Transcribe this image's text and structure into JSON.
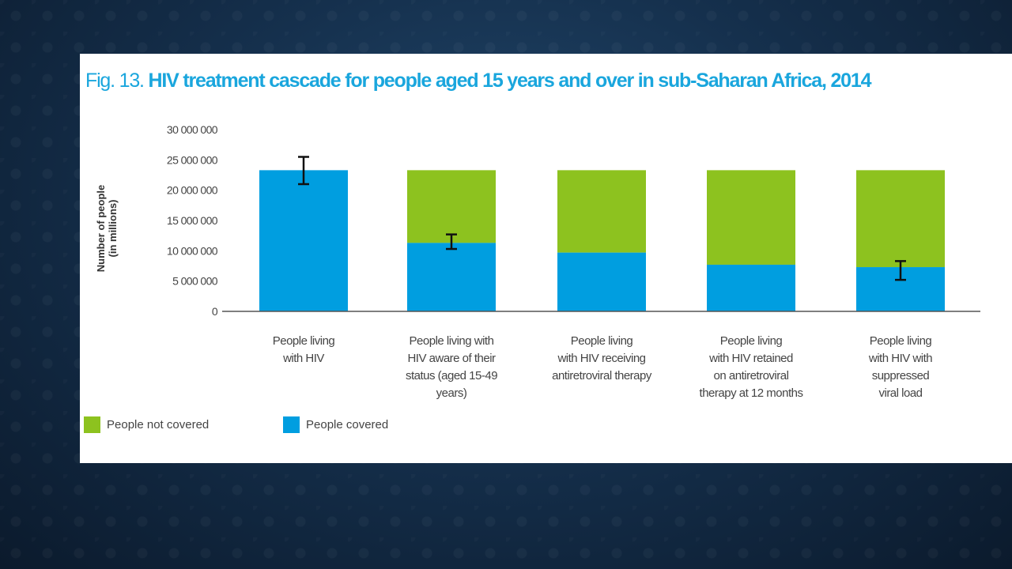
{
  "figure": {
    "number": "Fig. 13.",
    "title": "HIV treatment cascade for people aged 15 years and over in sub-Saharan Africa, 2014"
  },
  "chart_data": {
    "type": "bar",
    "stacked": true,
    "ylabel_lines": [
      "Number of people",
      "(in millions)"
    ],
    "ylim": [
      0,
      30000000
    ],
    "yticks": [
      "0",
      "5 000 000",
      "10 000 000",
      "15 000 000",
      "20 000 000",
      "25 000 000",
      "30 000 000"
    ],
    "ytick_values": [
      0,
      5000000,
      10000000,
      15000000,
      20000000,
      25000000,
      30000000
    ],
    "categories": [
      [
        "People living",
        "with HIV"
      ],
      [
        "People living with",
        "HIV aware of their",
        "status (aged 15-49",
        "years)"
      ],
      [
        "People living",
        "with HIV receiving",
        "antiretroviral therapy"
      ],
      [
        "People living",
        "with HIV retained",
        "on antiretroviral",
        "therapy at 12 months"
      ],
      [
        "People living",
        "with HIV with",
        "suppressed",
        "viral load"
      ]
    ],
    "series": [
      {
        "name": "People covered",
        "color": "#009ee0",
        "values": [
          23300000,
          11300000,
          9700000,
          7700000,
          7300000
        ]
      },
      {
        "name": "People not covered",
        "color": "#8dc21f",
        "values": [
          0,
          12000000,
          13600000,
          15600000,
          16000000
        ]
      }
    ],
    "error_bars": [
      {
        "index": 0,
        "low": 21000000,
        "high": 25500000
      },
      {
        "index": 1,
        "low": 10300000,
        "high": 12700000
      },
      {
        "index": 4,
        "low": 5200000,
        "high": 8300000
      }
    ],
    "legend": [
      {
        "label": "People not covered",
        "color": "#8dc21f"
      },
      {
        "label": "People covered",
        "color": "#009ee0"
      }
    ],
    "grid": false,
    "legend_position": "bottom-left"
  }
}
